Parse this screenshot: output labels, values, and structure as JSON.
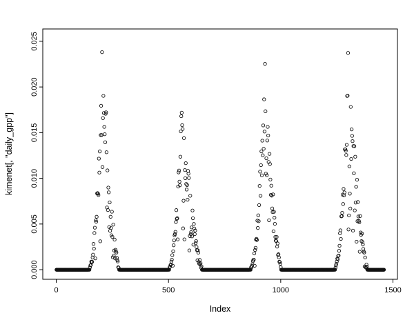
{
  "figure": {
    "background": "#ffffff",
    "foreground": "#000000"
  },
  "chart_data": {
    "type": "scatter",
    "title": "",
    "xlabel": "Index",
    "ylabel": "kimenet[, \"daily_gpp\"]",
    "marker": "open-circle",
    "point_radius": 2.2,
    "grid": false,
    "legend": "none",
    "xlim": [
      -60,
      1520
    ],
    "ylim": [
      -0.00105,
      0.02635
    ],
    "x_ticks": [
      0,
      500,
      1000,
      1500
    ],
    "x_tick_labels": [
      "0",
      "500",
      "1000",
      "1500"
    ],
    "y_ticks": [
      0.0,
      0.005,
      0.01,
      0.015,
      0.02,
      0.025
    ],
    "y_tick_labels": [
      "0.000",
      "0.005",
      "0.010",
      "0.015",
      "0.020",
      "0.025"
    ],
    "seed": 42,
    "zero_value": 0.0,
    "zero_step": 1,
    "season_step": 2,
    "zero_runs": [
      [
        1,
        140
      ],
      [
        285,
        495
      ],
      [
        655,
        858
      ],
      [
        1006,
        1234
      ],
      [
        1392,
        1460
      ]
    ],
    "seasons": [
      {
        "start": 140,
        "peak": 205,
        "end": 285,
        "amplitude": 0.0253
      },
      {
        "start": 495,
        "peak": 560,
        "end": 655,
        "amplitude": 0.0204
      },
      {
        "start": 858,
        "peak": 930,
        "end": 1006,
        "amplitude": 0.0253
      },
      {
        "start": 1234,
        "peak": 1300,
        "end": 1392,
        "amplitude": 0.0247
      }
    ],
    "rise_exponent": 2.3,
    "fall_exponent": 1.6,
    "noise_base": 0.62,
    "noise_span": 0.38,
    "drop_prob_rise": 0.12,
    "drop_prob_fall": 0.35
  }
}
